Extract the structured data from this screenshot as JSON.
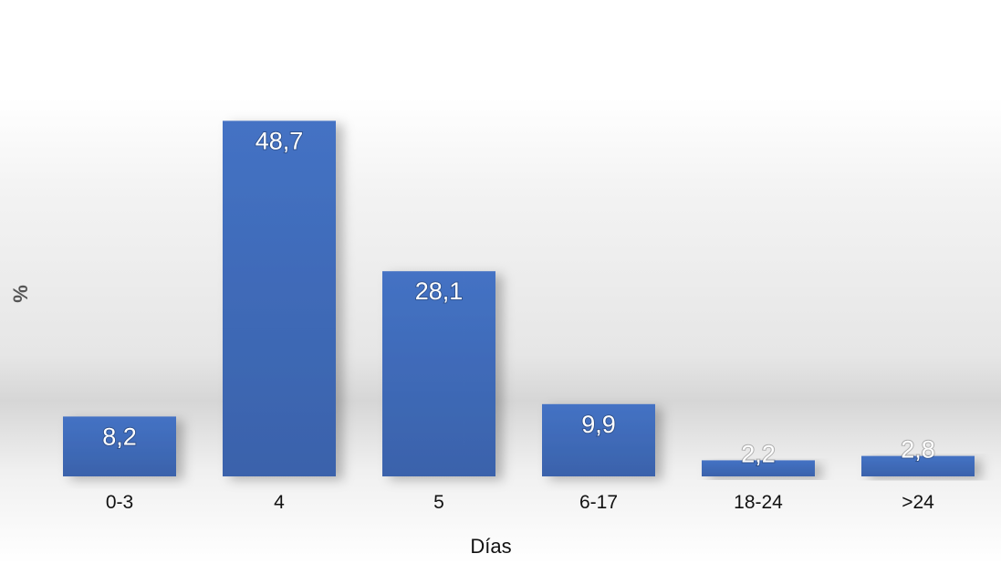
{
  "chart_data": {
    "type": "bar",
    "title": "",
    "xlabel": "Días",
    "ylabel": "%",
    "categories": [
      "0-3",
      "4",
      "5",
      "6-17",
      "18-24",
      ">24"
    ],
    "values": [
      8.2,
      48.7,
      28.1,
      9.9,
      2.2,
      2.8
    ],
    "data_labels": [
      "8,2",
      "48,7",
      "28,1",
      "9,9",
      "2,2",
      "2,8"
    ],
    "ylim": [
      0,
      50
    ],
    "grid": false,
    "legend": "none",
    "bar_color": "#4472C4"
  }
}
